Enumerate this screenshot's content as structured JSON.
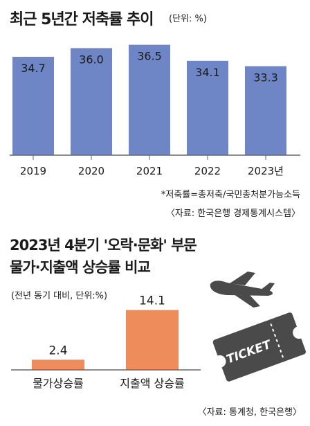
{
  "section1": {
    "title": "최근 5년간 저축률 추이",
    "unit": "(단위: %)",
    "footnote": "*저축률=총저축/국민총처분가능소득",
    "source": "〈자료: 한국은행 경제통계시스템〉"
  },
  "section2": {
    "title_line1": "2023년 4분기 '오락·문화' 부문",
    "title_line2": "물가·지출액 상승률 비교",
    "unit": "(전년 동기 대비, 단위:%)",
    "ticket_text": "TICKET",
    "source": "〈자료: 통계청, 한국은행〉"
  },
  "colors": {
    "bar_blue": "#6f86c6",
    "bar_orange": "#ee8c5b",
    "axis": "#666666"
  },
  "chart_data": [
    {
      "type": "bar",
      "title": "최근 5년간 저축률 추이",
      "categories": [
        "2019",
        "2020",
        "2021",
        "2022",
        "2023년"
      ],
      "values": [
        34.7,
        36.0,
        36.5,
        34.1,
        33.3
      ],
      "value_labels": [
        "34.7",
        "36.0",
        "36.5",
        "34.1",
        "33.3"
      ],
      "ylim": [
        20,
        37.6
      ],
      "grid": false,
      "legend": "none"
    },
    {
      "type": "bar",
      "title": "2023년 4분기 '오락·문화' 부문 물가·지출액 상승률 비교",
      "categories": [
        "물가상승률",
        "지출액 상승률"
      ],
      "values": [
        2.4,
        14.1
      ],
      "value_labels": [
        "2.4",
        "14.1"
      ],
      "ylim": [
        0,
        15
      ],
      "grid": false,
      "legend": "none"
    }
  ]
}
